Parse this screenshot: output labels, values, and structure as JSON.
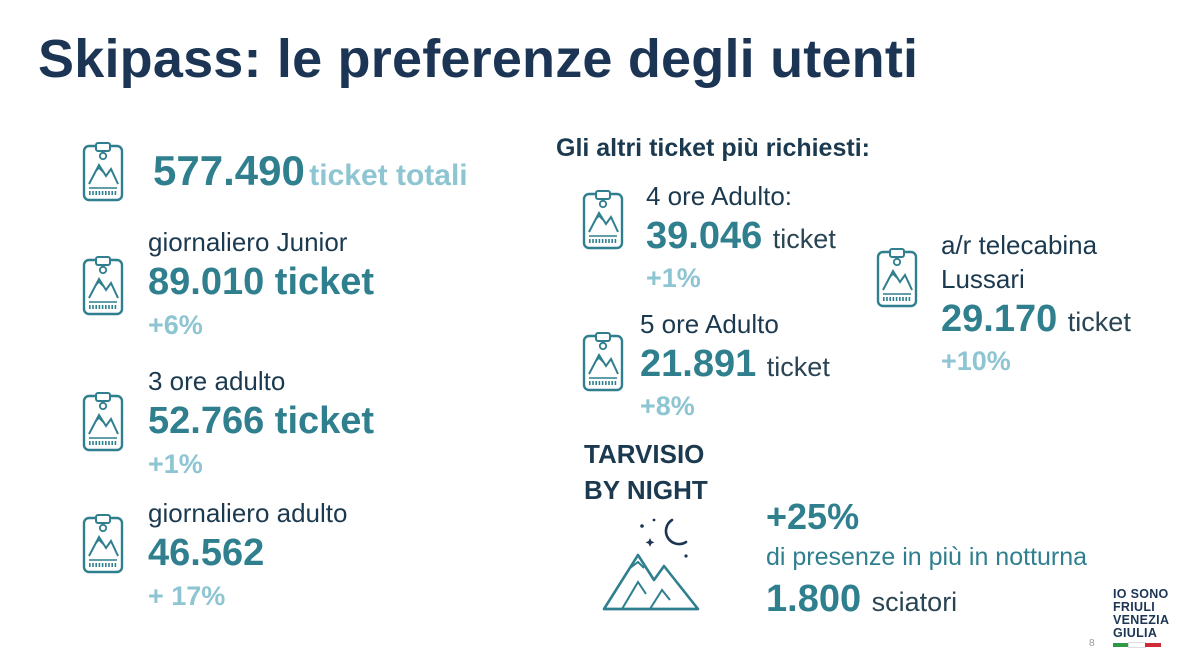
{
  "title": "Skipass: le preferenze degli utenti",
  "total": {
    "value": "577.490",
    "unit": "ticket totali"
  },
  "main_stats": [
    {
      "label": "giornaliero Junior",
      "value": "89.010",
      "unit": "ticket",
      "change": "+6%"
    },
    {
      "label": "3 ore adulto",
      "value": "52.766",
      "unit": "ticket",
      "change": "+1%"
    },
    {
      "label": "giornaliero adulto",
      "value": "46.562",
      "change": "+ 17%"
    }
  ],
  "other_heading": "Gli altri ticket più richiesti:",
  "other_stats": [
    {
      "label": "4 ore Adulto:",
      "value": "39.046",
      "unit": "ticket",
      "change": "+1%"
    },
    {
      "label": "5 ore Adulto",
      "value": "21.891",
      "unit": "ticket",
      "change": "+8%"
    },
    {
      "label_line1": "a/r telecabina",
      "label_line2": "Lussari",
      "value": "29.170",
      "unit": "ticket",
      "change": "+10%"
    }
  ],
  "night": {
    "title_line1": "TARVISIO",
    "title_line2": "BY NIGHT",
    "percent": "+25%",
    "description": "di presenze in più in notturna",
    "skiers_value": "1.800",
    "skiers_unit": "sciatori"
  },
  "logo": {
    "line1": "IO SONO",
    "line2": "FRIULI",
    "line3": "VENEZIA",
    "line4": "GIULIA"
  },
  "colors": {
    "title": "#1c3555",
    "accent": "#2f7f8e",
    "light_accent": "#8ec5d2",
    "flag_green": "#2e9a48",
    "flag_white": "#ffffff",
    "flag_red": "#cf2b36"
  },
  "page_number": "8",
  "icons": {
    "ticket": "skipass-ticket-icon",
    "night": "night-mountain-icon"
  }
}
